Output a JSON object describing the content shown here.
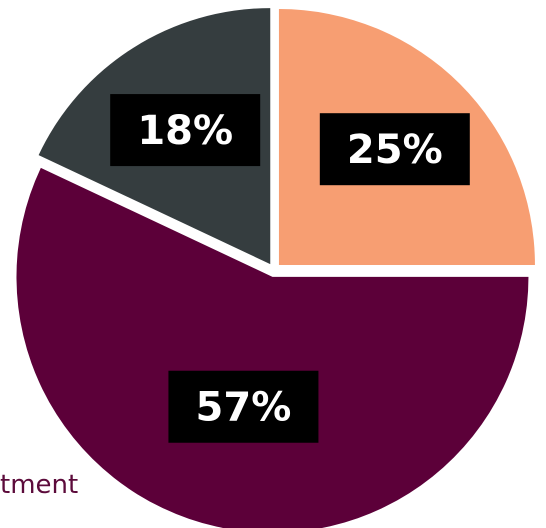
{
  "chart_data": {
    "type": "pie",
    "slices": [
      {
        "label": "25%",
        "value": 25,
        "color": "#f79e72"
      },
      {
        "label": "57%",
        "value": 57,
        "color": "#5c0039"
      },
      {
        "label": "18%",
        "value": 18,
        "color": "#353d3f"
      }
    ],
    "title": "",
    "legend_text": "tment"
  }
}
